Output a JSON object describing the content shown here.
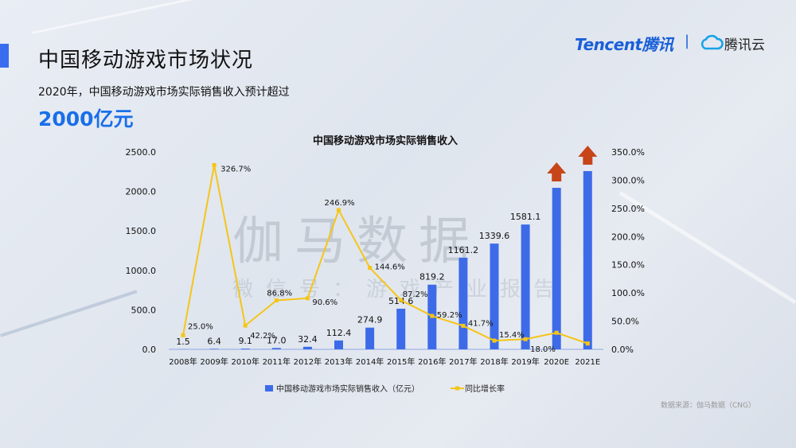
{
  "header": {
    "title": "中国移动游戏市场状况",
    "subtitle": "2020年，中国移动游戏市场实际销售收入预计超过",
    "highlight": "2000亿元",
    "logo_tencent": "Tencent腾讯",
    "logo_separator": "|",
    "logo_cloud": "腾讯云"
  },
  "watermark": {
    "main": "伽马数据",
    "sub": "微信号：游戏产业报告"
  },
  "source": "数据来源：伽马数据（CNG）",
  "colors": {
    "bar": "#3d6be8",
    "line": "#f5c518",
    "arrow": "#c8451a",
    "accent": "#1a6fe8"
  },
  "chart_data": {
    "type": "bar+line",
    "title": "中国移动游戏市场实际销售收入",
    "categories": [
      "2008年",
      "2009年",
      "2010年",
      "2011年",
      "2012年",
      "2013年",
      "2014年",
      "2015年",
      "2016年",
      "2017年",
      "2018年",
      "2019年",
      "2020E",
      "2021E"
    ],
    "series": [
      {
        "name": "中国移动游戏市场实际销售收入（亿元）",
        "type": "bar",
        "axis": "left",
        "values": [
          1.5,
          6.4,
          9.1,
          17.0,
          32.4,
          112.4,
          274.9,
          514.6,
          819.2,
          1161.2,
          1339.6,
          1581.1,
          2046,
          2258
        ],
        "labels": [
          "1.5",
          "6.4",
          "9.1",
          "17.0",
          "32.4",
          "112.4",
          "274.9",
          "514.6",
          "819.2",
          "1161.2",
          "1339.6",
          "1581.1",
          "",
          ""
        ]
      },
      {
        "name": "同比增长率",
        "type": "line",
        "axis": "right",
        "values": [
          25.0,
          326.7,
          42.2,
          86.8,
          90.6,
          246.9,
          144.6,
          87.2,
          59.2,
          41.7,
          15.4,
          18.0,
          29.4,
          10.4
        ],
        "labels": [
          "25.0%",
          "326.7%",
          "42.2%",
          "86.8%",
          "90.6%",
          "246.9%",
          "144.6%",
          "87.2%",
          "59.2%",
          "41.7%",
          "15.4%",
          "18.0%",
          "",
          ""
        ]
      }
    ],
    "y_left": {
      "range": [
        0,
        2500
      ],
      "ticks": [
        "0.0",
        "500.0",
        "1000.0",
        "1500.0",
        "2000.0",
        "2500.0"
      ]
    },
    "y_right": {
      "range": [
        0,
        350
      ],
      "ticks": [
        "0.0%",
        "50.0%",
        "100.0%",
        "150.0%",
        "200.0%",
        "250.0%",
        "300.0%",
        "350.0%"
      ]
    },
    "grid": false,
    "legend": "bottom",
    "annotations": [
      "up-arrow above 2020E",
      "up-arrow above 2021E"
    ]
  }
}
